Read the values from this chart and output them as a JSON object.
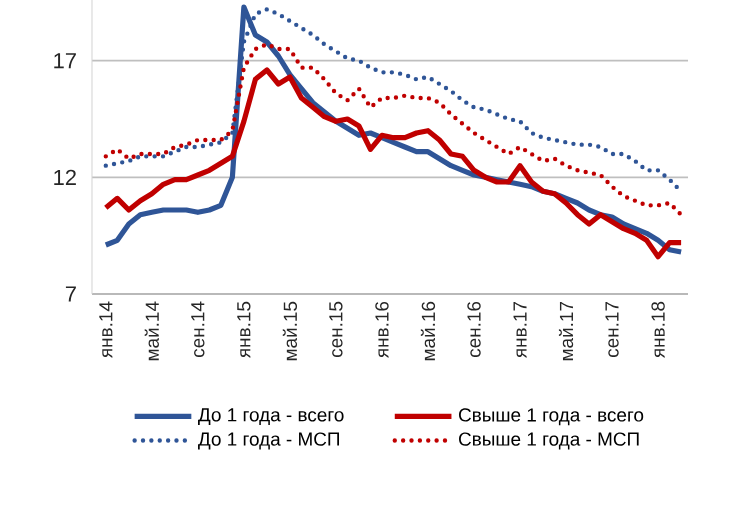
{
  "chart_data": {
    "type": "line",
    "categories": [
      "янв.14",
      null,
      null,
      null,
      "май.14",
      null,
      null,
      null,
      "сен.14",
      null,
      null,
      null,
      "янв.15",
      null,
      null,
      null,
      "май.15",
      null,
      null,
      null,
      "сен.15",
      null,
      null,
      null,
      "янв.16",
      null,
      null,
      null,
      "май.16",
      null,
      null,
      null,
      "сен.16",
      null,
      null,
      null,
      "янв.17",
      null,
      null,
      null,
      "май.17",
      null,
      null,
      null,
      "сен.17",
      null,
      null,
      null,
      "янв.18",
      null,
      null
    ],
    "series": [
      {
        "name": "До 1 года - всего",
        "color": "#2f5597",
        "line_style": "solid",
        "values": [
          9.1,
          9.3,
          10.0,
          10.4,
          10.5,
          10.6,
          10.6,
          10.6,
          10.5,
          10.6,
          10.8,
          12.0,
          19.3,
          18.1,
          17.8,
          17.2,
          16.4,
          15.8,
          15.2,
          14.8,
          14.4,
          14.1,
          13.8,
          13.9,
          13.7,
          13.5,
          13.3,
          13.1,
          13.1,
          12.8,
          12.5,
          12.3,
          12.1,
          12.0,
          11.9,
          11.8,
          11.7,
          11.6,
          11.4,
          11.3,
          11.1,
          10.9,
          10.6,
          10.4,
          10.3,
          10.0,
          9.8,
          9.6,
          9.3,
          8.9,
          8.8
        ]
      },
      {
        "name": "Свыше 1 года - всего",
        "color": "#c00000",
        "line_style": "solid",
        "values": [
          10.7,
          11.1,
          10.6,
          11.0,
          11.3,
          11.7,
          11.9,
          11.9,
          12.1,
          12.3,
          12.6,
          12.9,
          14.4,
          16.2,
          16.6,
          16.0,
          16.3,
          15.4,
          15.0,
          14.6,
          14.4,
          14.5,
          14.2,
          13.2,
          13.8,
          13.7,
          13.7,
          13.9,
          14.0,
          13.6,
          13.0,
          12.9,
          12.3,
          12.0,
          11.8,
          11.8,
          12.5,
          11.8,
          11.4,
          11.3,
          10.9,
          10.4,
          10.0,
          10.4,
          10.1,
          9.8,
          9.6,
          9.3,
          8.6,
          9.2,
          9.2
        ]
      },
      {
        "name": "До 1 года - МСП",
        "color": "#2f5597",
        "line_style": "dotted",
        "values": [
          12.5,
          12.6,
          12.7,
          12.9,
          12.9,
          12.9,
          13.1,
          13.3,
          13.3,
          13.4,
          13.5,
          13.9,
          17.8,
          19.0,
          19.2,
          19.0,
          18.7,
          18.4,
          18.1,
          17.7,
          17.4,
          17.1,
          17.0,
          16.7,
          16.5,
          16.5,
          16.4,
          16.2,
          16.3,
          16.0,
          15.7,
          15.3,
          15.0,
          14.9,
          14.7,
          14.5,
          14.4,
          13.9,
          13.7,
          13.6,
          13.5,
          13.4,
          13.4,
          13.3,
          13.0,
          13.0,
          12.7,
          12.3,
          12.3,
          11.9,
          11.4
        ]
      },
      {
        "name": "Свыше 1 года - МСП",
        "color": "#c00000",
        "line_style": "dotted",
        "values": [
          12.9,
          13.2,
          12.8,
          13.0,
          13.0,
          13.0,
          13.3,
          13.4,
          13.6,
          13.6,
          13.6,
          14.0,
          16.7,
          17.5,
          17.7,
          17.5,
          17.5,
          16.7,
          16.7,
          16.2,
          15.6,
          15.3,
          15.8,
          15.0,
          15.4,
          15.4,
          15.5,
          15.4,
          15.4,
          15.2,
          14.7,
          14.3,
          13.9,
          13.6,
          13.3,
          13.0,
          13.3,
          13.0,
          12.7,
          12.8,
          12.5,
          12.3,
          12.2,
          12.1,
          11.6,
          11.2,
          11.0,
          10.8,
          10.8,
          10.9,
          10.4
        ]
      }
    ],
    "ylim": [
      7,
      19.6
    ],
    "yticks": [
      7,
      12,
      17
    ],
    "grid": "y",
    "legend": "bottom",
    "marker": "none"
  }
}
